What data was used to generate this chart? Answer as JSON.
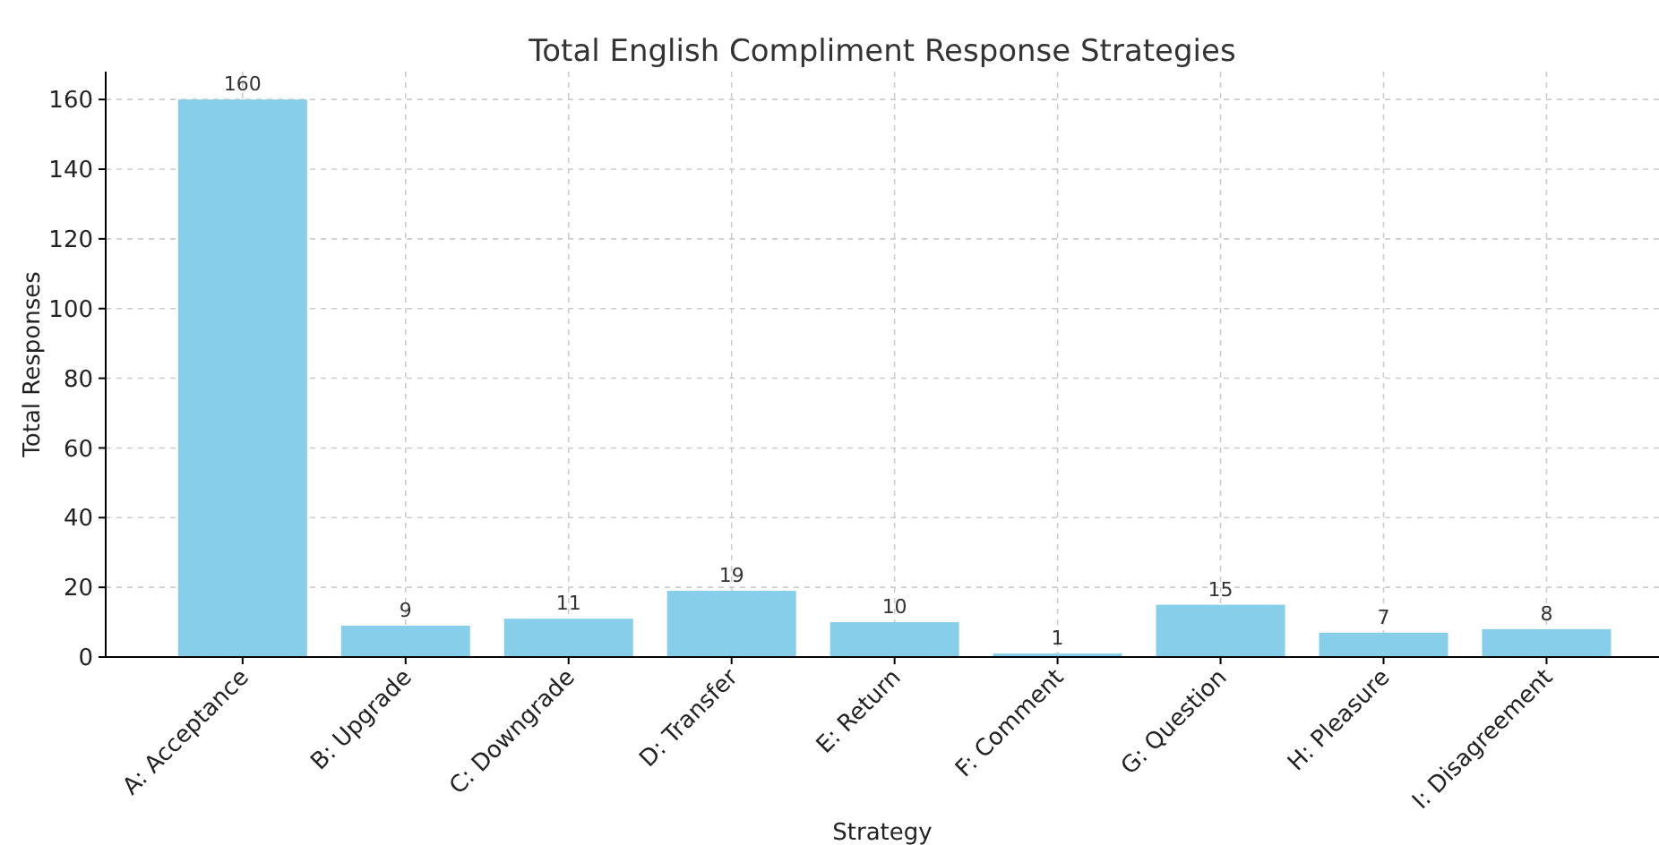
{
  "chart_data": {
    "type": "bar",
    "title": "Total English Compliment Response Strategies",
    "xlabel": "Strategy",
    "ylabel": "Total Responses",
    "categories": [
      "A: Acceptance",
      "B: Upgrade",
      "C: Downgrade",
      "D: Transfer",
      "E: Return",
      "F: Comment",
      "G: Question",
      "H: Pleasure",
      "I: Disagreement"
    ],
    "values": [
      160,
      9,
      11,
      19,
      10,
      1,
      15,
      7,
      8
    ],
    "color": "#87ceeb",
    "ylim": [
      0,
      168
    ],
    "yticks": [
      0,
      20,
      40,
      60,
      80,
      100,
      120,
      140,
      160
    ],
    "grid": true,
    "data_labels": true
  }
}
